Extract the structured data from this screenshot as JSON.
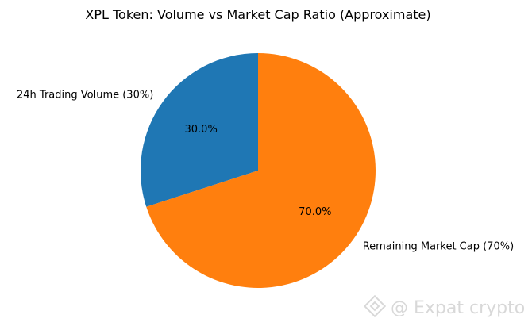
{
  "chart_data": {
    "type": "pie",
    "title": "XPL Token: Volume vs Market Cap Ratio (Approximate)",
    "start_angle_deg": 90,
    "direction": "counterclockwise",
    "slices": [
      {
        "label": "24h Trading Volume (30%)",
        "value": 30,
        "pct_label": "30.0%",
        "color": "#1f77b4"
      },
      {
        "label": "Remaining Market Cap (70%)",
        "value": 70,
        "pct_label": "70.0%",
        "color": "#ff7f0e"
      }
    ]
  },
  "watermark": {
    "text": "@ Expat crypto",
    "icon": "binance-logo-icon"
  }
}
